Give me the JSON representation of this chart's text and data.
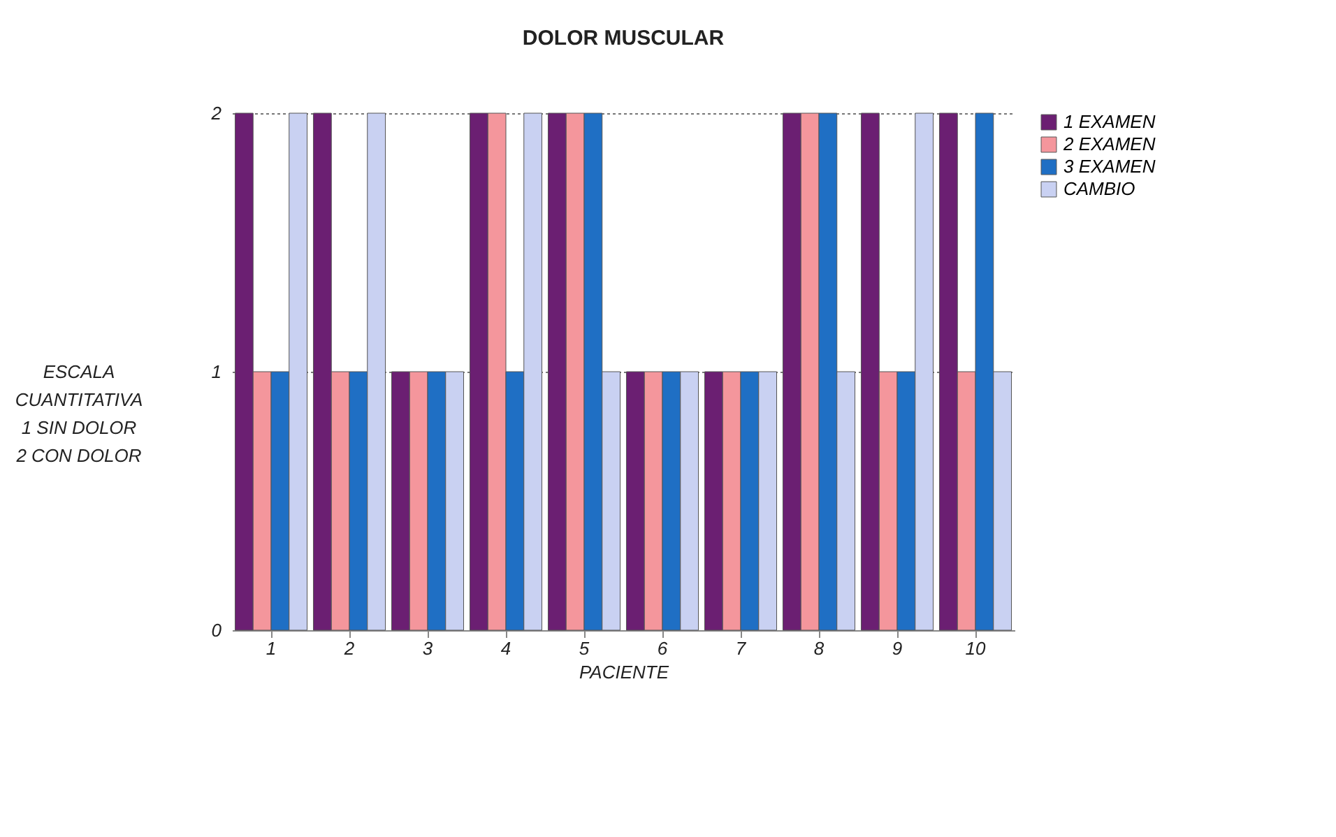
{
  "chart_data": {
    "type": "bar",
    "title": "DOLOR MUSCULAR",
    "xlabel": "PACIENTE",
    "ylabel": "ESCALA\nCUANTITATIVA\n1 SIN DOLOR\n2 CON DOLOR",
    "categories": [
      "1",
      "2",
      "3",
      "4",
      "5",
      "6",
      "7",
      "8",
      "9",
      "10"
    ],
    "series": [
      {
        "name": "1 EXAMEN",
        "color": "#6b1f72",
        "values": [
          2,
          2,
          1,
          2,
          2,
          1,
          1,
          2,
          2,
          2
        ]
      },
      {
        "name": "2 EXAMEN",
        "color": "#f4969c",
        "values": [
          1,
          1,
          1,
          2,
          2,
          1,
          1,
          2,
          1,
          1
        ]
      },
      {
        "name": "3 EXAMEN",
        "color": "#1f6fc4",
        "values": [
          1,
          1,
          1,
          1,
          2,
          1,
          1,
          2,
          1,
          2
        ]
      },
      {
        "name": "CAMBIO",
        "color": "#c9d1f2",
        "values": [
          2,
          2,
          1,
          2,
          1,
          1,
          1,
          1,
          2,
          1
        ]
      }
    ],
    "ylim": [
      0,
      2
    ],
    "yticks": [
      0,
      1,
      2
    ],
    "grid": "y",
    "legend": "right"
  }
}
